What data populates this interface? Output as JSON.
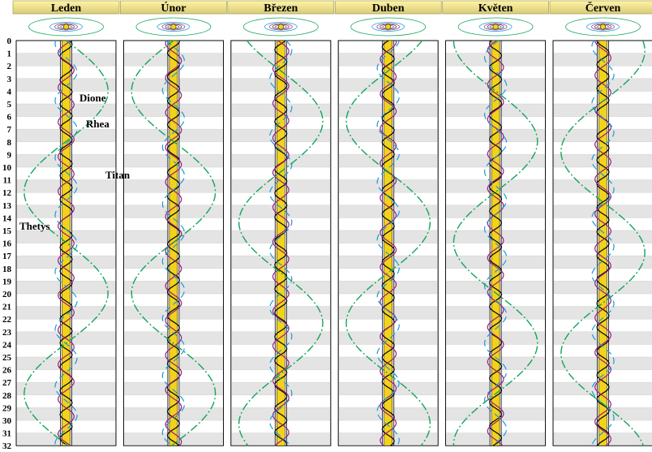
{
  "months": [
    {
      "name": "Leden",
      "titan_phase": 0.0
    },
    {
      "name": "Únor",
      "titan_phase": 0.5
    },
    {
      "name": "Březen",
      "titan_phase": 0.85
    },
    {
      "name": "Duben",
      "titan_phase": 0.35
    },
    {
      "name": "Květen",
      "titan_phase": 0.75
    },
    {
      "name": "Červen",
      "titan_phase": 0.2
    }
  ],
  "days": [
    "0",
    "1",
    "2",
    "3",
    "4",
    "5",
    "6",
    "7",
    "8",
    "9",
    "10",
    "11",
    "12",
    "13",
    "14",
    "15",
    "16",
    "17",
    "18",
    "19",
    "20",
    "21",
    "22",
    "23",
    "24",
    "25",
    "26",
    "27",
    "28",
    "29",
    "30",
    "31",
    "32"
  ],
  "moons": [
    {
      "name": "Thetys",
      "color": "#000000",
      "period_days": 1.888,
      "amplitude": 0.12,
      "dash": ""
    },
    {
      "name": "Dione",
      "color": "#9b1f7e",
      "period_days": 2.737,
      "amplitude": 0.16,
      "dash": ""
    },
    {
      "name": "Rhea",
      "color": "#1a9ad6",
      "period_days": 4.518,
      "amplitude": 0.22,
      "dash": "8 5"
    },
    {
      "name": "Titan",
      "color": "#12a55a",
      "period_days": 15.945,
      "amplitude": 0.48,
      "dash": "10 3 2 3"
    }
  ],
  "colors": {
    "title_bg": "#fff4a6",
    "title_bg_dark": "#d8cb78",
    "stripe": "#e4e4e4",
    "planet": "#f2d21b"
  }
}
